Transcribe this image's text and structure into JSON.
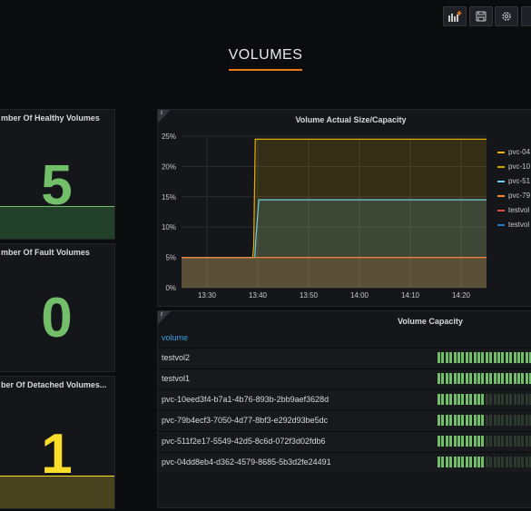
{
  "toolbar": {
    "buttons": [
      {
        "name": "add-panel",
        "icon": "add-panel-icon"
      },
      {
        "name": "save",
        "icon": "save-icon"
      },
      {
        "name": "settings",
        "icon": "gear-icon"
      }
    ]
  },
  "row_title": "VOLUMES",
  "stats": [
    {
      "title": "mber Of Healthy Volumes",
      "value": "5",
      "color": "#73bf69"
    },
    {
      "title": "mber Of Fault Volumes",
      "value": "0",
      "color": "#73bf69"
    },
    {
      "title": "ber Of Detached Volumes...",
      "value": "1",
      "color": "#fade2a"
    }
  ],
  "graph": {
    "title": "Volume Actual Size/Capacity",
    "legend": [
      {
        "label": "pvc-04",
        "color": "#e5ac0e"
      },
      {
        "label": "pvc-10",
        "color": "#cca300"
      },
      {
        "label": "pvc-51",
        "color": "#6ed0e0"
      },
      {
        "label": "pvc-79",
        "color": "#ef843c"
      },
      {
        "label": "testvol",
        "color": "#e24d42"
      },
      {
        "label": "testvol",
        "color": "#1f78c1"
      }
    ]
  },
  "chart_data": {
    "type": "line",
    "title": "Volume Actual Size/Capacity",
    "x": [
      "13:30",
      "13:40",
      "13:50",
      "14:00",
      "14:10",
      "14:20"
    ],
    "y_ticks": [
      "0%",
      "5%",
      "10%",
      "15%",
      "20%",
      "25%"
    ],
    "ylim": [
      0,
      25
    ],
    "grid": true,
    "legend_position": "right",
    "series": [
      {
        "name": "pvc-04",
        "color": "#e5ac0e",
        "points": [
          [
            0,
            5
          ],
          [
            14,
            5
          ],
          [
            14.2,
            7
          ],
          [
            14.5,
            24.5
          ],
          [
            60,
            24.5
          ]
        ]
      },
      {
        "name": "pvc-51",
        "color": "#6ed0e0",
        "points": [
          [
            0,
            5
          ],
          [
            14.4,
            5
          ],
          [
            14.7,
            9
          ],
          [
            15.2,
            14.5
          ],
          [
            60,
            14.5
          ]
        ]
      },
      {
        "name": "pvc-79",
        "color": "#ef843c",
        "points": [
          [
            0,
            5
          ],
          [
            60,
            5
          ]
        ]
      }
    ]
  },
  "table": {
    "title": "Volume Capacity",
    "column_header": "volume",
    "rows": [
      {
        "volume": "testvol2",
        "fill": 1.0
      },
      {
        "volume": "testvol1",
        "fill": 1.0
      },
      {
        "volume": "pvc-10eed3f4-b7a1-4b76-893b-2bb9aef3628d",
        "fill": 0.45
      },
      {
        "volume": "pvc-79b4ecf3-7050-4d77-8bf3-e292d93be5dc",
        "fill": 0.45
      },
      {
        "volume": "pvc-511f2e17-5549-42d5-8c6d-072f3d02fdb6",
        "fill": 0.45
      },
      {
        "volume": "pvc-04dd8eb4-d362-4579-8685-5b3d2fe24491",
        "fill": 0.45
      }
    ]
  }
}
